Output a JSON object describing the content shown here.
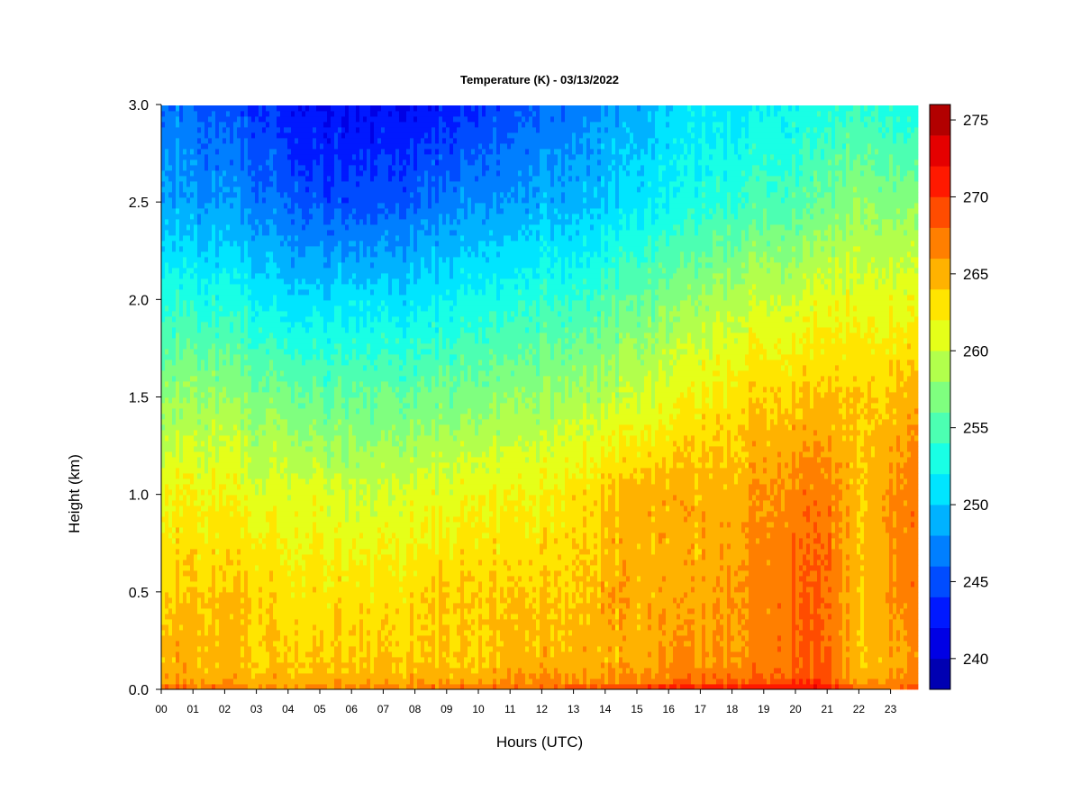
{
  "chart_data": {
    "type": "heatmap",
    "title": "Temperature (K) - 03/13/2022",
    "xlabel": "Hours (UTC)",
    "ylabel": "Height (km)",
    "x_ticks": [
      "00",
      "01",
      "02",
      "03",
      "04",
      "05",
      "06",
      "07",
      "08",
      "09",
      "10",
      "11",
      "12",
      "13",
      "14",
      "15",
      "16",
      "17",
      "18",
      "19",
      "20",
      "21",
      "22",
      "23"
    ],
    "x_range": [
      0,
      23.9
    ],
    "y_ticks": [
      "0.0",
      "0.5",
      "1.0",
      "1.5",
      "2.0",
      "2.5",
      "3.0"
    ],
    "y_range": [
      0,
      3.0
    ],
    "colorbar": {
      "ticks": [
        "240",
        "245",
        "250",
        "255",
        "260",
        "265",
        "270",
        "275"
      ],
      "range": [
        238,
        276
      ],
      "levels": [
        238,
        240,
        242,
        244,
        246,
        248,
        250,
        252,
        254,
        256,
        258,
        260,
        262,
        264,
        266,
        268,
        270,
        272,
        274,
        276
      ],
      "colors": [
        "#00007f",
        "#0000b2",
        "#0000e5",
        "#0019ff",
        "#004cff",
        "#007fff",
        "#00b2ff",
        "#00e5ff",
        "#19ffe5",
        "#4cffb2",
        "#7fff7f",
        "#b2ff4c",
        "#e5ff19",
        "#ffe500",
        "#ffb200",
        "#ff7f00",
        "#ff4c00",
        "#ff1900",
        "#e50000",
        "#b20000",
        "#7f0000"
      ]
    },
    "hours": [
      0,
      1,
      2,
      3,
      4,
      5,
      6,
      7,
      8,
      9,
      10,
      11,
      12,
      13,
      14,
      15,
      16,
      17,
      18,
      19,
      20,
      21,
      22,
      23,
      23.9
    ],
    "heights_km": [
      0.0,
      0.05,
      0.15,
      0.5,
      1.0,
      1.5,
      2.0,
      2.5,
      3.0
    ],
    "temperature_k": [
      [
        269,
        266,
        265,
        264,
        262,
        258,
        254,
        249,
        247
      ],
      [
        268,
        265,
        265,
        264,
        262,
        258,
        253,
        248,
        246
      ],
      [
        268,
        265,
        265,
        264,
        262,
        258,
        253,
        248,
        245
      ],
      [
        267,
        265,
        264,
        264,
        261,
        257,
        252,
        247,
        244
      ],
      [
        267,
        265,
        264,
        263,
        261,
        257,
        251,
        246,
        243
      ],
      [
        267,
        265,
        264,
        263,
        261,
        256,
        251,
        245,
        242
      ],
      [
        267,
        265,
        264,
        263,
        260,
        256,
        251,
        245,
        242
      ],
      [
        267,
        265,
        264,
        263,
        260,
        256,
        251,
        245,
        242
      ],
      [
        267,
        265,
        264,
        263,
        261,
        256,
        251,
        246,
        242
      ],
      [
        268,
        265,
        264,
        264,
        261,
        257,
        252,
        247,
        243
      ],
      [
        268,
        265,
        264,
        264,
        262,
        257,
        253,
        248,
        244
      ],
      [
        268,
        266,
        265,
        264,
        262,
        258,
        253,
        248,
        245
      ],
      [
        268,
        266,
        265,
        264,
        262,
        258,
        254,
        249,
        246
      ],
      [
        269,
        266,
        265,
        264,
        263,
        259,
        254,
        249,
        247
      ],
      [
        269,
        266,
        265,
        265,
        264,
        259,
        255,
        250,
        248
      ],
      [
        270,
        266,
        265,
        265,
        265,
        260,
        256,
        251,
        249
      ],
      [
        271,
        267,
        266,
        265,
        265,
        261,
        257,
        252,
        250
      ],
      [
        271,
        267,
        266,
        265,
        265,
        262,
        258,
        253,
        251
      ],
      [
        272,
        268,
        266,
        266,
        265,
        263,
        259,
        254,
        251
      ],
      [
        272,
        268,
        267,
        267,
        266,
        264,
        260,
        255,
        252
      ],
      [
        272,
        269,
        268,
        268,
        267,
        264,
        260,
        255,
        252
      ],
      [
        272,
        269,
        268,
        268,
        267,
        264,
        261,
        256,
        253
      ],
      [
        268,
        265,
        264,
        264,
        264,
        264,
        261,
        258,
        254
      ],
      [
        268,
        266,
        265,
        266,
        266,
        264,
        261,
        257,
        253
      ],
      [
        269,
        267,
        266,
        267,
        267,
        265,
        261,
        257,
        252
      ]
    ]
  }
}
